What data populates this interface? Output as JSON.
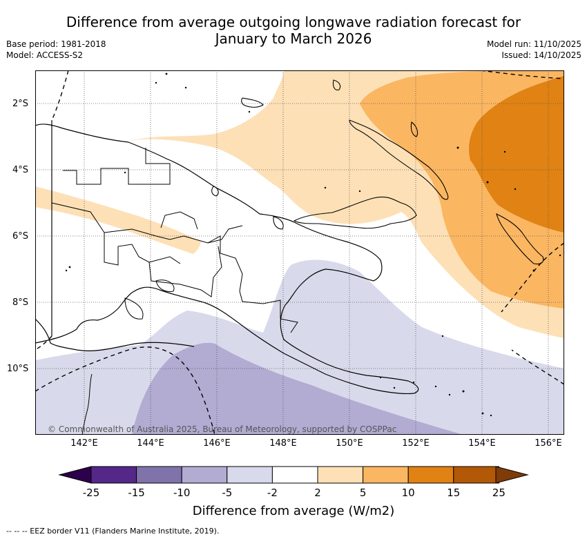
{
  "header": {
    "title_line1": "Difference from average outgoing longwave radiation forecast for",
    "title_line2": "January to March 2026",
    "base_period": "Base period: 1981-2018",
    "model": "Model: ACCESS-S2",
    "model_run": "Model run: 11/10/2025",
    "issued": "Issued: 14/10/2025"
  },
  "map": {
    "region": "Papua New Guinea",
    "lat_labels": [
      "2°S",
      "4°S",
      "6°S",
      "8°S",
      "10°S"
    ],
    "lon_labels": [
      "142°E",
      "144°E",
      "146°E",
      "148°E",
      "150°E",
      "152°E",
      "154°E",
      "156°E"
    ],
    "copyright": "© Commonwealth of Australia 2025, Bureau of Meteorology, supported by COSPPac",
    "colors": {
      "pos_2_5": "#fde0b6",
      "pos_5_10": "#fbb662",
      "pos_10_15": "#e08214",
      "neg_2_5": "#d8daeb",
      "neg_5_10": "#b2abd2",
      "land_border": "#000000"
    }
  },
  "colorbar": {
    "title": "Difference from average (W/m2)",
    "ticks": [
      "-25",
      "-15",
      "-10",
      "-5",
      "-2",
      "2",
      "5",
      "10",
      "15",
      "25"
    ],
    "colors": [
      "#2d004b",
      "#542788",
      "#8073ac",
      "#b2abd2",
      "#d8daeb",
      "#ffffff",
      "#fde0b6",
      "#fbb662",
      "#e08214",
      "#b35806",
      "#7f3b08"
    ]
  },
  "footnote": "-- -- -- EEZ border V11 (Flanders Marine Institute, 2019)."
}
